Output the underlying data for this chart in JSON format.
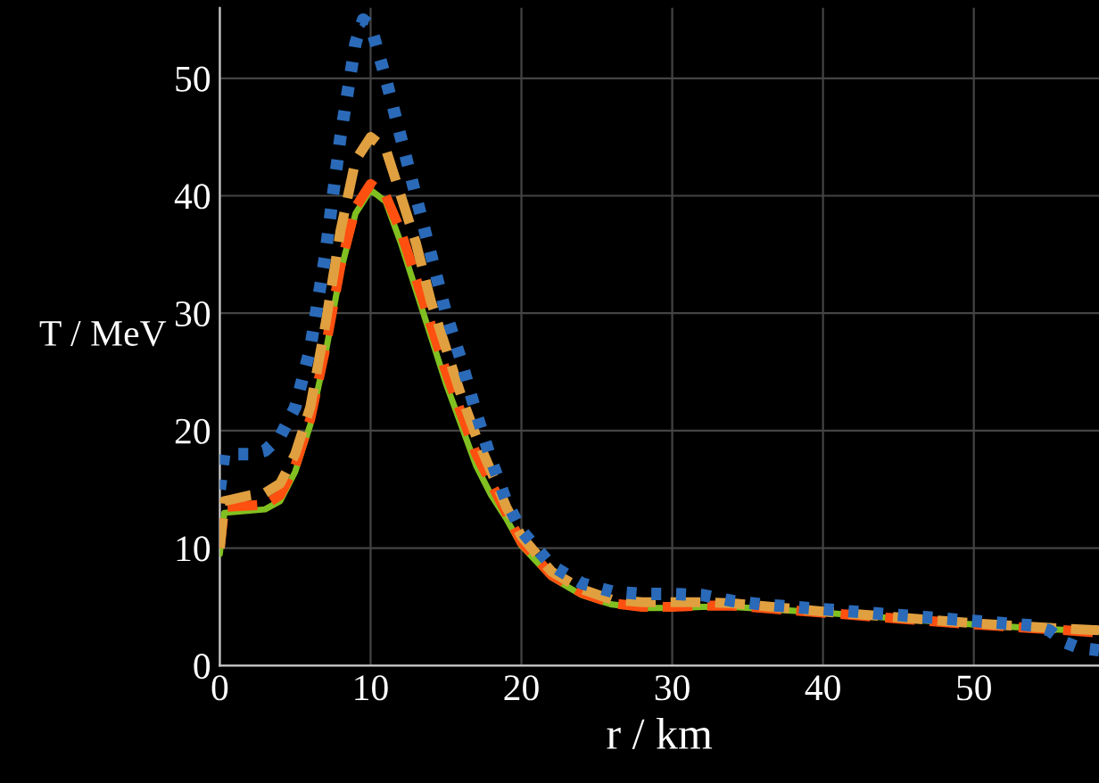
{
  "chart_data": {
    "type": "line",
    "xlabel": "r / km",
    "ylabel": "T / MeV",
    "xlim": [
      0,
      58.3
    ],
    "ylim": [
      0,
      56
    ],
    "xticks": [
      0,
      10,
      20,
      30,
      40,
      50
    ],
    "yticks": [
      0,
      10,
      20,
      30,
      40,
      50
    ],
    "grid": true,
    "marker": "none",
    "series": [
      {
        "color": "#2a6ab8",
        "line_style": "dotted",
        "x": [
          0,
          0.3,
          2,
          3,
          4,
          5,
          6,
          7,
          8,
          9,
          9.5,
          10,
          11,
          12,
          13,
          14,
          15,
          16,
          17,
          18,
          19,
          20,
          22,
          24,
          26,
          28,
          30,
          32,
          34,
          36,
          40,
          45,
          50,
          54,
          55,
          56,
          57,
          58.3
        ],
        "values": [
          15,
          18,
          18,
          18.3,
          19.5,
          22,
          27,
          35,
          45,
          53,
          55,
          54.5,
          50,
          45,
          40,
          35,
          30,
          26,
          21.5,
          17.5,
          14,
          11.5,
          8.5,
          7,
          6.3,
          6.1,
          6.1,
          6,
          5.5,
          5.2,
          4.8,
          4.3,
          3.8,
          3.4,
          3,
          2,
          1.5,
          1.3
        ]
      },
      {
        "color": "#e0a040",
        "line_style": "dashed",
        "x": [
          0,
          0.3,
          2,
          3,
          4,
          5,
          6,
          7,
          8,
          9,
          10,
          11,
          12,
          13,
          14,
          15,
          16,
          17,
          18,
          19,
          20,
          22,
          24,
          26,
          28,
          30,
          32,
          34,
          40,
          45,
          50,
          55,
          58.3
        ],
        "values": [
          10,
          14,
          14.5,
          14.7,
          15.5,
          18,
          22,
          29,
          37,
          43,
          45,
          44,
          40,
          36,
          31,
          27,
          23,
          19.5,
          16.5,
          13.5,
          11,
          8,
          6.5,
          5.6,
          5.4,
          5.4,
          5.4,
          5.3,
          4.6,
          4.1,
          3.6,
          3.2,
          3
        ]
      },
      {
        "color": "#ff5010",
        "line_style": "dashed",
        "x": [
          0,
          0.3,
          3,
          4,
          5,
          6,
          7,
          8,
          9,
          10,
          11,
          12,
          13,
          14,
          15,
          16,
          17,
          18,
          19,
          20,
          22,
          24,
          26,
          28,
          30,
          32,
          34,
          40,
          45,
          50,
          55,
          58.3
        ],
        "values": [
          10,
          13.5,
          13.7,
          14.5,
          17,
          21,
          27,
          34,
          39,
          41,
          40,
          37,
          33,
          29,
          25,
          21.5,
          18,
          15.5,
          13,
          10.5,
          7.7,
          6.2,
          5.3,
          5,
          5,
          5.1,
          5.1,
          4.5,
          4,
          3.5,
          3.1,
          2.8
        ]
      },
      {
        "color": "#80c020",
        "line_style": "solid",
        "x": [
          0,
          0.3,
          3,
          4,
          5,
          6,
          7,
          8,
          9,
          10,
          11,
          12,
          13,
          14,
          15,
          16,
          17,
          18,
          19,
          20,
          22,
          24,
          26,
          28,
          30,
          32,
          34,
          40,
          45,
          50,
          55,
          58.3
        ],
        "values": [
          9.5,
          13,
          13.3,
          14,
          16.5,
          20.5,
          26.5,
          33.5,
          38.5,
          40.5,
          39.5,
          36,
          32,
          28,
          24,
          20.5,
          17,
          14.5,
          12.5,
          10.2,
          7.5,
          6,
          5.2,
          4.9,
          4.9,
          5,
          5,
          4.5,
          4,
          3.5,
          3.1,
          2.9
        ]
      }
    ]
  }
}
